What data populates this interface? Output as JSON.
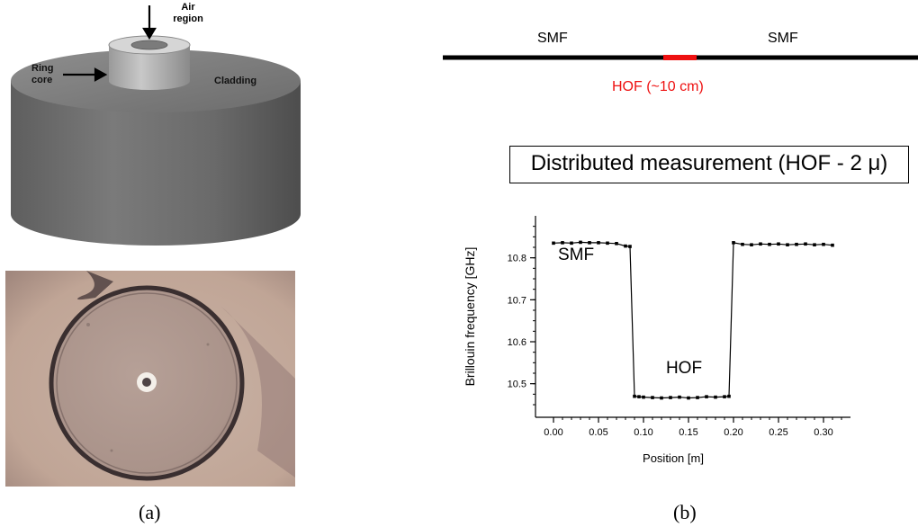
{
  "panel_a": {
    "labels": {
      "air_region_line1": "Air",
      "air_region_line2": "region",
      "ring_core_line1": "Ring",
      "ring_core_line2": "core",
      "cladding": "Cladding"
    },
    "caption": "(a)"
  },
  "panel_b": {
    "fiber": {
      "left_label": "SMF",
      "right_label": "SMF",
      "hof_label": "HOF (~10 cm)",
      "hof_color": "#ee1111"
    },
    "box_title": "Distributed measurement (HOF - 2 μ)",
    "caption": "(b)"
  },
  "chart_data": {
    "type": "line",
    "xlabel": "Position [m]",
    "ylabel": "Brillouin frequency [GHz]",
    "xlim": [
      -0.02,
      0.33
    ],
    "ylim": [
      10.42,
      10.9
    ],
    "x_ticks": [
      0.0,
      0.05,
      0.1,
      0.15,
      0.2,
      0.25,
      0.3
    ],
    "x_tick_labels": [
      "0.00",
      "0.05",
      "0.10",
      "0.15",
      "0.20",
      "0.25",
      "0.30"
    ],
    "y_ticks": [
      10.5,
      10.6,
      10.7,
      10.8
    ],
    "y_tick_labels": [
      "10.5",
      "10.6",
      "10.7",
      "10.8"
    ],
    "annotations": [
      {
        "text": "SMF",
        "x": 0.025,
        "y": 10.795
      },
      {
        "text": "HOF",
        "x": 0.145,
        "y": 10.525
      }
    ],
    "series": [
      {
        "x": [
          0.0,
          0.01,
          0.02,
          0.03,
          0.04,
          0.05,
          0.06,
          0.07,
          0.08,
          0.085,
          0.09,
          0.095,
          0.1,
          0.11,
          0.12,
          0.13,
          0.14,
          0.15,
          0.16,
          0.17,
          0.18,
          0.19,
          0.195,
          0.2,
          0.21,
          0.22,
          0.23,
          0.24,
          0.25,
          0.26,
          0.27,
          0.28,
          0.29,
          0.3,
          0.31
        ],
        "y": [
          10.835,
          10.836,
          10.835,
          10.837,
          10.836,
          10.836,
          10.835,
          10.834,
          10.828,
          10.827,
          10.47,
          10.469,
          10.468,
          10.467,
          10.466,
          10.467,
          10.468,
          10.466,
          10.467,
          10.469,
          10.468,
          10.469,
          10.47,
          10.836,
          10.832,
          10.831,
          10.833,
          10.832,
          10.833,
          10.831,
          10.832,
          10.833,
          10.831,
          10.832,
          10.83
        ]
      }
    ]
  }
}
